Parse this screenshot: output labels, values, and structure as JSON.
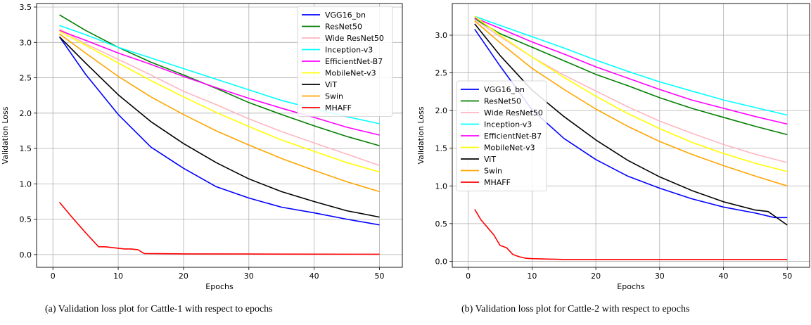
{
  "legend_labels": [
    "VGG16_bn",
    "ResNet50",
    "Wide ResNet50",
    "Inception-v3",
    "EfficientNet-B7",
    "MobileNet-v3",
    "ViT",
    "Swin",
    "MHAFF"
  ],
  "colors": {
    "VGG16_bn": "#0000ff",
    "ResNet50": "#007f00",
    "Wide ResNet50": "#ffb6c1",
    "Inception-v3": "#00ffff",
    "EfficientNet-B7": "#ff00ff",
    "MobileNet-v3": "#ffff00",
    "ViT": "#000000",
    "Swin": "#ffa500",
    "MHAFF": "#ff0000"
  },
  "chart_data": [
    {
      "type": "line",
      "caption": "(a) Validation loss plot for Cattle-1 with respect to epochs",
      "xlabel": "Epochs",
      "ylabel": "Validation Loss",
      "xlim": [
        -2.5,
        53.5
      ],
      "ylim": [
        -0.18,
        3.55
      ],
      "xticks": [
        0,
        10,
        20,
        30,
        40,
        50
      ],
      "yticks": [
        0.0,
        0.5,
        1.0,
        1.5,
        2.0,
        2.5,
        3.0,
        3.5
      ],
      "grid": true,
      "legend_position": "top-right",
      "series": [
        {
          "name": "VGG16_bn",
          "x": [
            1,
            5,
            10,
            15,
            20,
            25,
            30,
            35,
            40,
            45,
            50
          ],
          "y": [
            3.08,
            2.55,
            1.98,
            1.52,
            1.22,
            0.96,
            0.8,
            0.67,
            0.59,
            0.5,
            0.42
          ]
        },
        {
          "name": "ResNet50",
          "x": [
            1,
            5,
            10,
            15,
            20,
            25,
            30,
            35,
            40,
            45,
            50
          ],
          "y": [
            3.39,
            3.17,
            2.93,
            2.72,
            2.54,
            2.35,
            2.15,
            1.98,
            1.82,
            1.67,
            1.54
          ]
        },
        {
          "name": "Wide ResNet50",
          "x": [
            1,
            5,
            10,
            15,
            20,
            25,
            30,
            35,
            40,
            45,
            50
          ],
          "y": [
            3.19,
            2.98,
            2.76,
            2.54,
            2.31,
            2.12,
            1.92,
            1.74,
            1.58,
            1.42,
            1.26
          ]
        },
        {
          "name": "Inception-v3",
          "x": [
            1,
            5,
            10,
            15,
            20,
            25,
            30,
            35,
            40,
            45,
            50
          ],
          "y": [
            3.24,
            3.11,
            2.93,
            2.78,
            2.63,
            2.48,
            2.33,
            2.18,
            2.06,
            1.95,
            1.85
          ]
        },
        {
          "name": "EfficientNet-B7",
          "x": [
            1,
            5,
            10,
            15,
            20,
            25,
            30,
            35,
            40,
            45,
            50
          ],
          "y": [
            3.17,
            3.03,
            2.85,
            2.69,
            2.52,
            2.36,
            2.21,
            2.07,
            1.94,
            1.8,
            1.69
          ]
        },
        {
          "name": "MobileNet-v3",
          "x": [
            1,
            5,
            10,
            15,
            20,
            25,
            30,
            35,
            40,
            45,
            50
          ],
          "y": [
            3.16,
            2.96,
            2.71,
            2.46,
            2.23,
            2.01,
            1.81,
            1.62,
            1.46,
            1.3,
            1.17
          ]
        },
        {
          "name": "ViT",
          "x": [
            1,
            5,
            10,
            15,
            20,
            25,
            30,
            35,
            40,
            45,
            50
          ],
          "y": [
            3.08,
            2.71,
            2.26,
            1.88,
            1.57,
            1.3,
            1.07,
            0.89,
            0.75,
            0.62,
            0.53
          ]
        },
        {
          "name": "Swin",
          "x": [
            1,
            5,
            10,
            15,
            20,
            25,
            30,
            35,
            40,
            45,
            50
          ],
          "y": [
            3.12,
            2.85,
            2.52,
            2.23,
            1.98,
            1.75,
            1.55,
            1.36,
            1.19,
            1.03,
            0.89
          ]
        },
        {
          "name": "MHAFF",
          "x": [
            1,
            3,
            5,
            7,
            8,
            9,
            10,
            11,
            12,
            13,
            14,
            20,
            30,
            40,
            50
          ],
          "y": [
            0.74,
            0.52,
            0.31,
            0.11,
            0.11,
            0.1,
            0.09,
            0.08,
            0.08,
            0.07,
            0.015,
            0.01,
            0.008,
            0.006,
            0.005
          ]
        }
      ]
    },
    {
      "type": "line",
      "caption": "(b) Validation loss plot for Cattle-2 with respect to epochs",
      "xlabel": "Epochs",
      "ylabel": "Validation Loss",
      "xlim": [
        -2.5,
        53.5
      ],
      "ylim": [
        -0.08,
        3.42
      ],
      "xticks": [
        0,
        10,
        20,
        30,
        40,
        50
      ],
      "yticks": [
        0.0,
        0.5,
        1.0,
        1.5,
        2.0,
        2.5,
        3.0
      ],
      "grid": true,
      "legend_position": "center-left",
      "series": [
        {
          "name": "VGG16_bn",
          "x": [
            1,
            5,
            10,
            15,
            20,
            25,
            30,
            35,
            40,
            45,
            48,
            50
          ],
          "y": [
            3.08,
            2.59,
            2.01,
            1.63,
            1.35,
            1.13,
            0.97,
            0.83,
            0.72,
            0.64,
            0.58,
            0.58
          ]
        },
        {
          "name": "ResNet50",
          "x": [
            1,
            5,
            10,
            15,
            20,
            25,
            30,
            35,
            40,
            45,
            50
          ],
          "y": [
            3.22,
            3.02,
            2.84,
            2.66,
            2.48,
            2.33,
            2.17,
            2.03,
            1.91,
            1.79,
            1.68
          ]
        },
        {
          "name": "Wide ResNet50",
          "x": [
            1,
            5,
            10,
            15,
            20,
            25,
            30,
            35,
            40,
            45,
            50
          ],
          "y": [
            3.21,
            2.98,
            2.71,
            2.47,
            2.26,
            2.05,
            1.86,
            1.7,
            1.55,
            1.42,
            1.31
          ]
        },
        {
          "name": "Inception-v3",
          "x": [
            1,
            5,
            10,
            15,
            20,
            25,
            30,
            35,
            40,
            45,
            50
          ],
          "y": [
            3.25,
            3.13,
            2.98,
            2.83,
            2.67,
            2.52,
            2.38,
            2.26,
            2.14,
            2.04,
            1.94
          ]
        },
        {
          "name": "EfficientNet-B7",
          "x": [
            1,
            5,
            10,
            15,
            20,
            25,
            30,
            35,
            40,
            45,
            50
          ],
          "y": [
            3.23,
            3.09,
            2.91,
            2.75,
            2.58,
            2.43,
            2.28,
            2.14,
            2.03,
            1.92,
            1.82
          ]
        },
        {
          "name": "MobileNet-v3",
          "x": [
            1,
            5,
            10,
            15,
            20,
            25,
            30,
            35,
            40,
            45,
            50
          ],
          "y": [
            3.25,
            3.0,
            2.71,
            2.44,
            2.19,
            1.96,
            1.76,
            1.58,
            1.43,
            1.3,
            1.19
          ]
        },
        {
          "name": "ViT",
          "x": [
            1,
            5,
            10,
            15,
            20,
            25,
            30,
            35,
            40,
            45,
            47,
            50
          ],
          "y": [
            3.15,
            2.73,
            2.27,
            1.92,
            1.61,
            1.34,
            1.12,
            0.94,
            0.79,
            0.68,
            0.66,
            0.48
          ]
        },
        {
          "name": "Swin",
          "x": [
            1,
            5,
            10,
            15,
            20,
            25,
            30,
            35,
            40,
            45,
            50
          ],
          "y": [
            3.19,
            2.9,
            2.56,
            2.28,
            2.02,
            1.79,
            1.59,
            1.42,
            1.27,
            1.13,
            1.0
          ]
        },
        {
          "name": "MHAFF",
          "x": [
            1,
            2,
            3,
            4,
            5,
            6,
            7,
            8,
            9,
            10,
            12,
            15,
            20,
            30,
            40,
            50
          ],
          "y": [
            0.69,
            0.55,
            0.45,
            0.35,
            0.21,
            0.18,
            0.09,
            0.06,
            0.04,
            0.035,
            0.03,
            0.025,
            0.025,
            0.025,
            0.025,
            0.025
          ]
        }
      ]
    }
  ]
}
